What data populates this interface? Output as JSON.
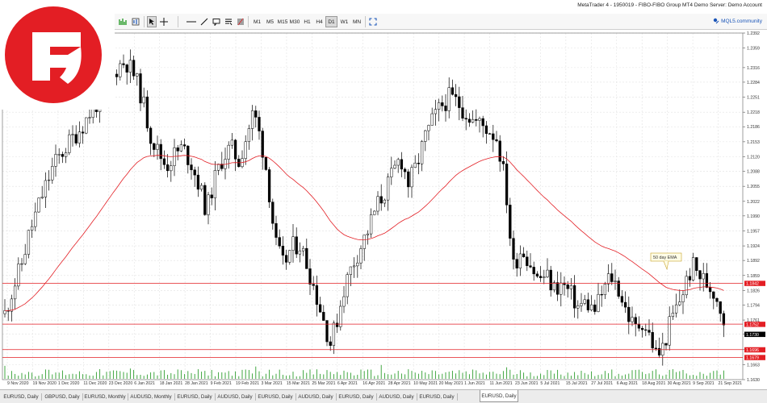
{
  "window": {
    "title": "MetaTrader 4 - 1950019 - FIBO-FIBO Group MT4 Demo Server: Demo Account",
    "brand_color": "#e31e24"
  },
  "toolbar": {
    "tools": [
      {
        "name": "cursor-icon",
        "active": true
      },
      {
        "name": "crosshair-icon"
      },
      {
        "name": "horizontal-line-icon"
      },
      {
        "name": "trendline-icon"
      },
      {
        "name": "text-label-icon"
      },
      {
        "name": "text-icon"
      },
      {
        "name": "fibonacci-icon"
      }
    ],
    "timeframes": [
      "M1",
      "M5",
      "M15",
      "M30",
      "H1",
      "H4",
      "D1",
      "W1",
      "MN"
    ],
    "active_timeframe": "D1",
    "mql_label": "MQL5.community"
  },
  "chart": {
    "symbol": "EURUSD",
    "period": "Daily",
    "ema_label": "50 day EMA",
    "price_axis": [
      "1.2392",
      "1.2359",
      "1.2316",
      "1.2284",
      "1.2251",
      "1.2218",
      "1.2186",
      "1.2153",
      "1.2120",
      "1.2088",
      "1.2055",
      "1.2022",
      "1.1990",
      "1.1957",
      "1.1924",
      "1.1892",
      "1.1859",
      "1.1826",
      "1.1794",
      "1.1761",
      "1.1730",
      "1.1696",
      "1.1663",
      "1.1630"
    ],
    "price_labels": [
      {
        "text": "1.1842",
        "color": "#e31e24"
      },
      {
        "text": "1.1752",
        "color": "#e31e24"
      },
      {
        "text": "1.1730",
        "color": "#000000"
      },
      {
        "text": "1.1696",
        "color": "#e31e24"
      },
      {
        "text": "1.1679",
        "color": "#e31e24"
      }
    ],
    "date_axis": [
      "9 Nov 2020",
      "19 Nov 2020",
      "1 Dec 2020",
      "11 Dec 2020",
      "23 Dec 2020",
      "6 Jan 2021",
      "18 Jan 2021",
      "28 Jan 2021",
      "9 Feb 2021",
      "19 Feb 2021",
      "3 Mar 2021",
      "15 Mar 2021",
      "25 Mar 2021",
      "6 Apr 2021",
      "16 Apr 2021",
      "28 Apr 2021",
      "10 May 2021",
      "20 May 2021",
      "1 Jun 2021",
      "11 Jun 2021",
      "23 Jun 2021",
      "5 Jul 2021",
      "15 Jul 2021",
      "27 Jul 2021",
      "6 Aug 2021",
      "18 Aug 2021",
      "30 Aug 2021",
      "9 Sep 2021",
      "21 Sep 2021"
    ],
    "colors": {
      "bar": "#000000",
      "ema": "#e31e24",
      "level": "#e31e24",
      "volume": "#2e9e2e",
      "grid": "#e2e2e2"
    }
  },
  "chart_data": {
    "type": "candlestick",
    "series": [
      {
        "name": "EURUSD, Daily"
      },
      {
        "name": "50 day EMA"
      }
    ],
    "horizontal_levels": [
      1.1842,
      1.1752,
      1.1696,
      1.1679
    ],
    "last_price": 1.173,
    "ylim": [
      1.163,
      1.2392
    ],
    "x_range": [
      "9 Nov 2020",
      "21 Sep 2021"
    ]
  },
  "tabs": [
    {
      "label": "EURUSD, Daily"
    },
    {
      "label": "GBPUSD, Daily"
    },
    {
      "label": "EURUSD, Monthly"
    },
    {
      "label": "AUDUSD, Monthly"
    },
    {
      "label": "EURUSD, Daily"
    },
    {
      "label": "AUDUSD, Daily"
    },
    {
      "label": "EURUSD, Daily"
    },
    {
      "label": "AUDUSD, Daily"
    },
    {
      "label": "EURUSD, Daily"
    },
    {
      "label": "AUDUSD, Daily"
    },
    {
      "label": "EURUSD, Daily"
    },
    {
      "label": "EURUSD, Daily",
      "selected": true
    }
  ]
}
